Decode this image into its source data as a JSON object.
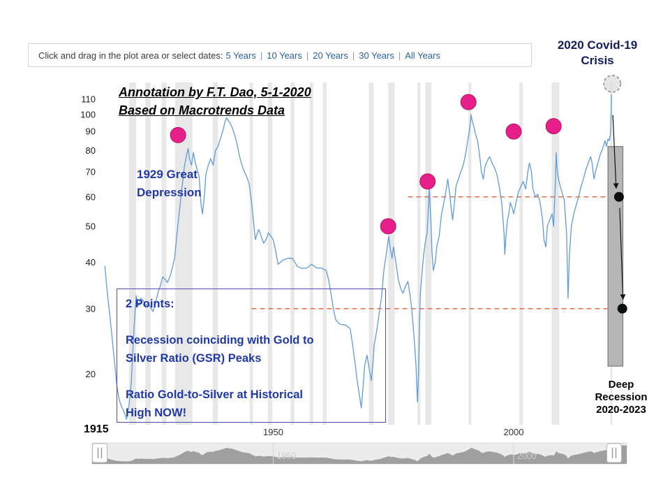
{
  "toolbar": {
    "prompt": "Click and drag in the plot area or select dates:",
    "separator": "|",
    "ranges": [
      "5 Years",
      "10 Years",
      "20 Years",
      "30 Years",
      "All Years"
    ],
    "link_color": "#2a5fa8"
  },
  "annotations": {
    "covid_crisis": {
      "lines": [
        "2020 Covid-19",
        "Crisis"
      ],
      "color": "#141b5e"
    },
    "byline": {
      "lines": [
        "Annotation by F.T. Dao, 5-1-2020",
        "Based on Macrotrends Data"
      ]
    },
    "depression": {
      "lines": [
        "1929 Great",
        "Depression"
      ],
      "color": "#2038a8"
    },
    "points_box": {
      "title": "2 Points:",
      "point1_lines": [
        "Recession coinciding with Gold to",
        "Silver Ratio (GSR) Peaks"
      ],
      "point2_lines": [
        "Ratio Gold-to-Silver at Historical",
        "High NOW!"
      ],
      "color": "#2038a8",
      "border_color": "#4c4cb0"
    },
    "deep_recession": {
      "lines": [
        "Deep",
        "Recession",
        "2020-2023"
      ]
    },
    "start_year_label": "1915"
  },
  "navigator": {
    "labels": [
      {
        "year": 1950,
        "text": "1950"
      },
      {
        "year": 2000,
        "text": "2000"
      }
    ]
  },
  "chart_data": {
    "type": "line",
    "series_name": "Gold to Silver Ratio (GSR)",
    "y_scale": "log",
    "xlim": [
      1913.5,
      2023.8
    ],
    "ylim": [
      14.6,
      122
    ],
    "y_ticks": [
      110,
      100,
      90,
      80,
      70,
      60,
      50,
      40,
      30,
      20
    ],
    "x_ticks": [
      1950,
      2000
    ],
    "points": [
      [
        1915,
        39
      ],
      [
        1915.5,
        33
      ],
      [
        1916,
        29
      ],
      [
        1916.5,
        25
      ],
      [
        1917,
        21.5
      ],
      [
        1917.5,
        18.5
      ],
      [
        1918,
        17
      ],
      [
        1918.5,
        16.3
      ],
      [
        1919,
        15.8
      ],
      [
        1919.5,
        15.1
      ],
      [
        1920,
        16.5
      ],
      [
        1920.5,
        19
      ],
      [
        1921,
        26
      ],
      [
        1921.5,
        32.5
      ],
      [
        1922,
        30.5
      ],
      [
        1922.5,
        32
      ],
      [
        1923,
        31.5
      ],
      [
        1923.5,
        30.5
      ],
      [
        1924,
        31
      ],
      [
        1925,
        29.5
      ],
      [
        1925.5,
        31
      ],
      [
        1926,
        33
      ],
      [
        1926.5,
        34.5
      ],
      [
        1927,
        36.5
      ],
      [
        1927.5,
        36
      ],
      [
        1928,
        35.3
      ],
      [
        1928.5,
        36.5
      ],
      [
        1929,
        38.5
      ],
      [
        1929.5,
        41
      ],
      [
        1930,
        48
      ],
      [
        1930.5,
        55
      ],
      [
        1931,
        63
      ],
      [
        1931.5,
        72
      ],
      [
        1932,
        78
      ],
      [
        1932.3,
        81
      ],
      [
        1932.6,
        76
      ],
      [
        1933,
        73
      ],
      [
        1933.4,
        79
      ],
      [
        1933.8,
        74
      ],
      [
        1934.2,
        71
      ],
      [
        1934.6,
        68
      ],
      [
        1935,
        57
      ],
      [
        1935.3,
        54
      ],
      [
        1935.7,
        61
      ],
      [
        1936,
        69
      ],
      [
        1936.5,
        73
      ],
      [
        1937,
        76
      ],
      [
        1937.5,
        73
      ],
      [
        1938,
        80
      ],
      [
        1938.5,
        82
      ],
      [
        1939,
        86
      ],
      [
        1939.5,
        90
      ],
      [
        1940,
        96
      ],
      [
        1940.3,
        98
      ],
      [
        1940.7,
        96
      ],
      [
        1941,
        95
      ],
      [
        1941.5,
        92
      ],
      [
        1942,
        88
      ],
      [
        1942.5,
        83
      ],
      [
        1943,
        77
      ],
      [
        1943.5,
        73
      ],
      [
        1944,
        70
      ],
      [
        1944.5,
        68
      ],
      [
        1945,
        65
      ],
      [
        1945.5,
        58
      ],
      [
        1946,
        50
      ],
      [
        1946.3,
        46
      ],
      [
        1946.7,
        48
      ],
      [
        1947,
        49
      ],
      [
        1947.5,
        47
      ],
      [
        1948,
        45
      ],
      [
        1948.5,
        46
      ],
      [
        1949,
        48
      ],
      [
        1949.5,
        47
      ],
      [
        1950,
        46
      ],
      [
        1950.5,
        43
      ],
      [
        1951,
        39.5
      ],
      [
        1951.5,
        40
      ],
      [
        1952,
        40.5
      ],
      [
        1953,
        41
      ],
      [
        1954,
        41
      ],
      [
        1954.5,
        40
      ],
      [
        1955,
        39
      ],
      [
        1956,
        38.5
      ],
      [
        1957,
        38.6
      ],
      [
        1958,
        39.5
      ],
      [
        1959,
        38.6
      ],
      [
        1960,
        38.6
      ],
      [
        1961,
        38
      ],
      [
        1961.5,
        36
      ],
      [
        1962,
        33
      ],
      [
        1962.5,
        30
      ],
      [
        1963,
        28
      ],
      [
        1963.5,
        27.5
      ],
      [
        1964,
        27.2
      ],
      [
        1965,
        27.1
      ],
      [
        1966,
        26.5
      ],
      [
        1966.5,
        24
      ],
      [
        1967,
        21.5
      ],
      [
        1967.5,
        19
      ],
      [
        1968,
        17.3
      ],
      [
        1968.3,
        16.2
      ],
      [
        1968.7,
        18.5
      ],
      [
        1969,
        21
      ],
      [
        1969.5,
        22.5
      ],
      [
        1970,
        20.5
      ],
      [
        1970.4,
        19.2
      ],
      [
        1970.8,
        22
      ],
      [
        1971,
        24
      ],
      [
        1971.5,
        26
      ],
      [
        1972,
        29
      ],
      [
        1972.5,
        32
      ],
      [
        1973,
        38
      ],
      [
        1973.5,
        42
      ],
      [
        1974,
        47
      ],
      [
        1974.3,
        44
      ],
      [
        1974.7,
        41
      ],
      [
        1975,
        44
      ],
      [
        1975.5,
        40
      ],
      [
        1976,
        36
      ],
      [
        1976.5,
        34
      ],
      [
        1977,
        33
      ],
      [
        1977.5,
        34.5
      ],
      [
        1978,
        35.5
      ],
      [
        1978.4,
        33
      ],
      [
        1978.8,
        30
      ],
      [
        1979.1,
        27
      ],
      [
        1979.4,
        24
      ],
      [
        1979.7,
        21
      ],
      [
        1980,
        16.8
      ],
      [
        1980.2,
        20
      ],
      [
        1980.4,
        27
      ],
      [
        1980.6,
        33
      ],
      [
        1980.9,
        37
      ],
      [
        1981.2,
        41
      ],
      [
        1981.6,
        45
      ],
      [
        1982,
        48
      ],
      [
        1982.2,
        54
      ],
      [
        1982.45,
        63
      ],
      [
        1982.6,
        58
      ],
      [
        1982.8,
        51
      ],
      [
        1983,
        43
      ],
      [
        1983.3,
        38
      ],
      [
        1983.7,
        40
      ],
      [
        1984,
        44
      ],
      [
        1984.5,
        47
      ],
      [
        1985,
        54
      ],
      [
        1985.5,
        58
      ],
      [
        1986,
        63
      ],
      [
        1986.3,
        67
      ],
      [
        1986.7,
        61
      ],
      [
        1987,
        56
      ],
      [
        1987.3,
        52
      ],
      [
        1987.7,
        58
      ],
      [
        1988,
        64
      ],
      [
        1988.5,
        67
      ],
      [
        1989,
        70
      ],
      [
        1989.5,
        73
      ],
      [
        1990,
        78
      ],
      [
        1990.3,
        83
      ],
      [
        1990.7,
        89
      ],
      [
        1991,
        95
      ],
      [
        1991.15,
        100
      ],
      [
        1991.3,
        97
      ],
      [
        1991.7,
        93
      ],
      [
        1992,
        89
      ],
      [
        1992.5,
        85
      ],
      [
        1993,
        76
      ],
      [
        1993.3,
        70
      ],
      [
        1993.7,
        67
      ],
      [
        1994,
        72
      ],
      [
        1994.5,
        75
      ],
      [
        1995,
        77
      ],
      [
        1995.5,
        74
      ],
      [
        1996,
        72
      ],
      [
        1996.5,
        69
      ],
      [
        1997,
        64
      ],
      [
        1997.5,
        58
      ],
      [
        1998,
        48
      ],
      [
        1998.15,
        42
      ],
      [
        1998.4,
        47
      ],
      [
        1998.7,
        52
      ],
      [
        1999,
        54
      ],
      [
        1999.3,
        58
      ],
      [
        1999.7,
        56
      ],
      [
        2000,
        54
      ],
      [
        2000.5,
        58
      ],
      [
        2001,
        62
      ],
      [
        2001.5,
        64
      ],
      [
        2002,
        66
      ],
      [
        2002.5,
        63
      ],
      [
        2003,
        71
      ],
      [
        2003.3,
        74
      ],
      [
        2003.7,
        70
      ],
      [
        2004,
        63
      ],
      [
        2004.5,
        60
      ],
      [
        2005,
        61
      ],
      [
        2005.5,
        58
      ],
      [
        2006,
        52
      ],
      [
        2006.3,
        46
      ],
      [
        2006.7,
        44
      ],
      [
        2007,
        50
      ],
      [
        2007.5,
        52
      ],
      [
        2008,
        54
      ],
      [
        2008.3,
        50
      ],
      [
        2008.6,
        62
      ],
      [
        2008.85,
        79
      ],
      [
        2009,
        72
      ],
      [
        2009.3,
        67
      ],
      [
        2009.7,
        64
      ],
      [
        2010,
        62
      ],
      [
        2010.5,
        59
      ],
      [
        2011,
        48
      ],
      [
        2011.3,
        32
      ],
      [
        2011.6,
        42
      ],
      [
        2012,
        50
      ],
      [
        2012.5,
        54
      ],
      [
        2013,
        57
      ],
      [
        2013.5,
        60
      ],
      [
        2014,
        64
      ],
      [
        2014.5,
        67
      ],
      [
        2015,
        71
      ],
      [
        2015.5,
        74
      ],
      [
        2016,
        77
      ],
      [
        2016.3,
        74
      ],
      [
        2016.7,
        67
      ],
      [
        2017,
        70
      ],
      [
        2017.5,
        74
      ],
      [
        2018,
        78
      ],
      [
        2018.5,
        81
      ],
      [
        2019,
        85
      ],
      [
        2019.3,
        82
      ],
      [
        2019.6,
        86
      ],
      [
        2019.9,
        85
      ],
      [
        2020.1,
        88
      ],
      [
        2020.25,
        97
      ],
      [
        2020.35,
        113
      ]
    ],
    "recessions": [
      [
        1920,
        1921.5
      ],
      [
        1923.4,
        1924.5
      ],
      [
        1926.8,
        1927.8
      ],
      [
        1929.6,
        1933.2
      ],
      [
        1937.4,
        1938.5
      ],
      [
        1945.1,
        1945.8
      ],
      [
        1948.9,
        1949.8
      ],
      [
        1953.6,
        1954.4
      ],
      [
        1957.6,
        1958.3
      ],
      [
        1960.3,
        1961.1
      ],
      [
        1969.9,
        1970.9
      ],
      [
        1973.9,
        1975.2
      ],
      [
        1980,
        1980.6
      ],
      [
        1981.6,
        1982.9
      ],
      [
        1990.6,
        1991.2
      ],
      [
        2001.2,
        2001.9
      ],
      [
        2007.9,
        2009.5
      ],
      [
        2020.1,
        2020.4
      ]
    ],
    "peak_markers": [
      {
        "year": 1930.2,
        "value": 88
      },
      {
        "year": 1973.9,
        "value": 50
      },
      {
        "year": 1982.1,
        "value": 66
      },
      {
        "year": 1990.6,
        "value": 108
      },
      {
        "year": 2000,
        "value": 90
      },
      {
        "year": 2008.3,
        "value": 93
      }
    ],
    "covid_marker": {
      "year": 2020.5,
      "value": 121
    },
    "dashed_lines": [
      {
        "value": 60,
        "from_year": 1978,
        "to_year": 2022.2
      },
      {
        "value": 30,
        "from_year": 1945.5,
        "to_year": 2022.8
      }
    ],
    "end_dots": [
      {
        "year": 2021.9,
        "value": 60
      },
      {
        "year": 2022.6,
        "value": 30
      }
    ],
    "projection_bar": {
      "year_from": 2019.6,
      "year_to": 2022.7,
      "value_top": 82,
      "value_bottom": 21
    },
    "colors": {
      "line": "#5f9bd8",
      "marker": "#e71f8a",
      "marker_stroke": "#b5135e",
      "recession_band": "#e2e2e2",
      "dashed_line": "#e0603a",
      "projection_bar": "#b5b5b5",
      "projection_bar_stroke": "#7a7a7a",
      "dot": "#0d0d0d",
      "covid_marker_fill": "#dcdcdc",
      "covid_marker_stroke": "#8f8f8f",
      "nav_bg": "#ececec",
      "nav_area": "#9f9f9f"
    }
  }
}
